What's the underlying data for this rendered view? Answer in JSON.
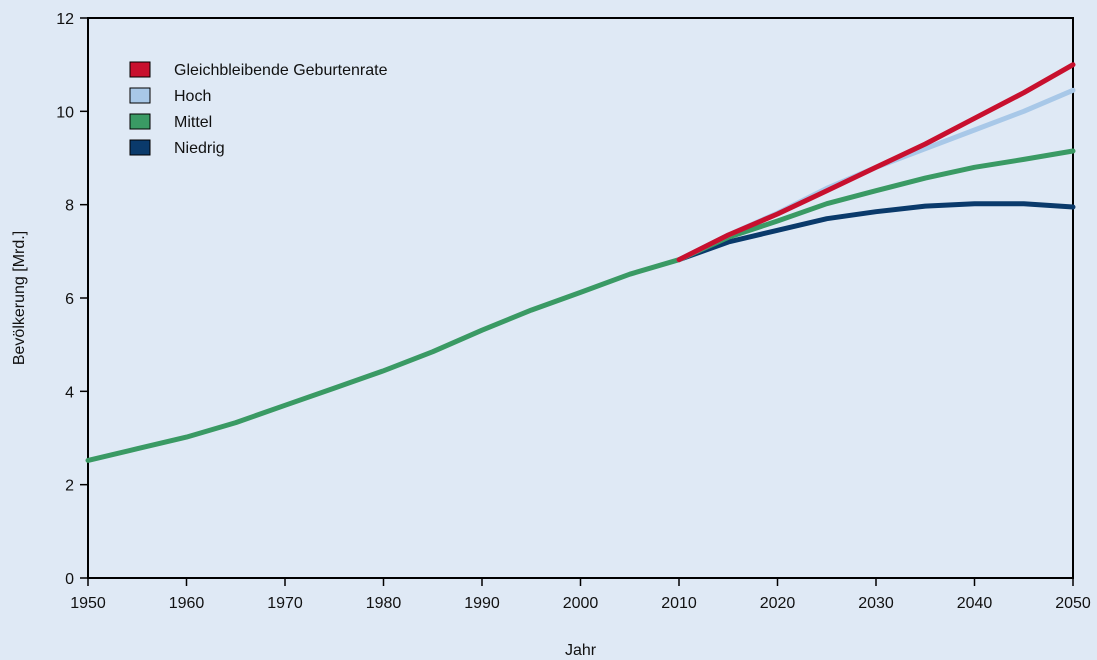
{
  "chart_data": {
    "type": "line",
    "title": "",
    "xlabel": "Jahr",
    "ylabel": "Bevölkerung [Mrd.]",
    "xlim": [
      1950,
      2050
    ],
    "ylim": [
      0,
      12
    ],
    "xticks": [
      1950,
      1960,
      1970,
      1980,
      1990,
      2000,
      2010,
      2020,
      2030,
      2040,
      2050
    ],
    "yticks": [
      0,
      2,
      4,
      6,
      8,
      10,
      12
    ],
    "grid": false,
    "legend_position": "top-left",
    "series": [
      {
        "name": "Gleichbleibende Geburtenrate",
        "color": "#c8102e",
        "x": [
          2010,
          2015,
          2020,
          2025,
          2030,
          2035,
          2040,
          2045,
          2050
        ],
        "y": [
          6.82,
          7.35,
          7.8,
          8.3,
          8.8,
          9.3,
          9.85,
          10.4,
          11.0
        ]
      },
      {
        "name": "Hoch",
        "color": "#a8c8e8",
        "x": [
          2010,
          2015,
          2020,
          2025,
          2030,
          2035,
          2040,
          2045,
          2050
        ],
        "y": [
          6.82,
          7.35,
          7.82,
          8.35,
          8.8,
          9.2,
          9.6,
          10.0,
          10.45
        ]
      },
      {
        "name": "Mittel",
        "color": "#3a9a64",
        "x": [
          1950,
          1955,
          1960,
          1965,
          1970,
          1975,
          1980,
          1985,
          1990,
          1995,
          2000,
          2005,
          2010,
          2015,
          2020,
          2025,
          2030,
          2035,
          2040,
          2045,
          2050
        ],
        "y": [
          2.52,
          2.77,
          3.02,
          3.33,
          3.7,
          4.07,
          4.44,
          4.85,
          5.31,
          5.74,
          6.12,
          6.51,
          6.82,
          7.3,
          7.65,
          8.02,
          8.3,
          8.57,
          8.8,
          8.97,
          9.15
        ]
      },
      {
        "name": "Niedrig",
        "color": "#0a3a6b",
        "x": [
          2010,
          2015,
          2020,
          2025,
          2030,
          2035,
          2040,
          2045,
          2050
        ],
        "y": [
          6.82,
          7.2,
          7.45,
          7.7,
          7.85,
          7.97,
          8.02,
          8.02,
          7.95
        ]
      }
    ]
  }
}
